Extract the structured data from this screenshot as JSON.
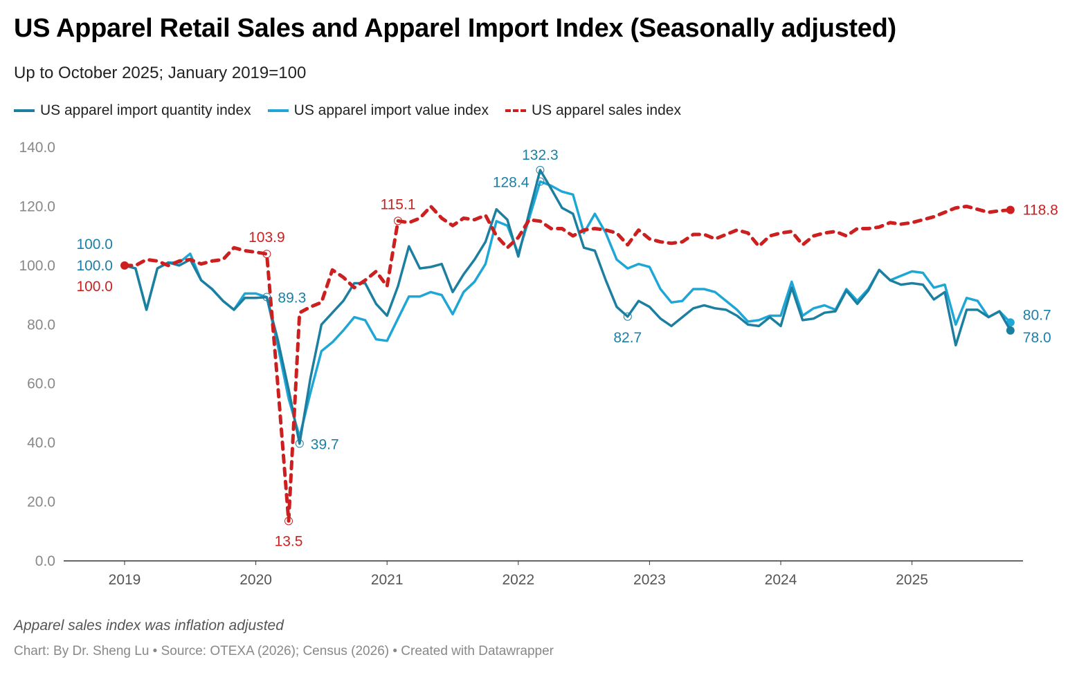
{
  "title": "US Apparel Retail Sales and Apparel Import Index (Seasonally adjusted)",
  "subtitle": "Up to October 2025; January 2019=100",
  "note": "Apparel sales index was inflation adjusted",
  "source": "Chart: By Dr. Sheng Lu • Source: OTEXA (2026); Census (2026) • Created with Datawrapper",
  "chart_data": {
    "type": "line",
    "title": "US Apparel Retail Sales and Apparel Import Index (Seasonally adjusted)",
    "xlabel": "",
    "ylabel": "",
    "ylim": [
      0,
      140
    ],
    "yticks": [
      "0.0",
      "20.0",
      "40.0",
      "60.0",
      "80.0",
      "100.0",
      "120.0",
      "140.0"
    ],
    "ytick_values": [
      0,
      20,
      40,
      60,
      80,
      100,
      120,
      140
    ],
    "xticks": [
      "2019",
      "2020",
      "2021",
      "2022",
      "2023",
      "2024",
      "2025"
    ],
    "start": "2019-01",
    "end": "2025-10",
    "legend_position": "top-left",
    "grid": false,
    "colors": {
      "quantity": "#1d7fa0",
      "value": "#1ea6d6",
      "sales": "#cc1f1f"
    },
    "series": [
      {
        "name": "US apparel import quantity index",
        "key": "quantity",
        "style": "solid",
        "values": [
          100,
          99,
          85,
          99,
          101,
          100,
          102,
          95,
          92,
          88,
          85,
          89,
          89,
          89.3,
          75,
          58,
          39.7,
          62,
          80,
          84,
          88,
          94,
          94,
          87,
          83,
          93,
          106.5,
          99,
          99.5,
          100.5,
          91,
          97,
          102,
          108,
          119,
          115.5,
          103,
          118,
          132.3,
          126,
          119.5,
          117.5,
          106,
          105,
          95,
          86,
          82.7,
          88,
          86,
          82,
          79.5,
          82.5,
          85.5,
          86.5,
          85.5,
          85,
          83,
          80,
          79.5,
          82.5,
          79.5,
          92.5,
          81.5,
          82,
          84,
          84.5,
          91.5,
          87,
          91.5,
          98.5,
          95,
          93.5,
          94,
          93.5,
          88.5,
          91,
          73,
          85,
          85,
          82.5,
          84.5,
          78.0
        ]
      },
      {
        "name": "US apparel import value index",
        "key": "value",
        "style": "solid",
        "values": [
          100,
          99,
          85,
          99,
          101,
          101,
          104,
          95,
          92,
          88,
          85,
          90.5,
          90.5,
          89.3,
          73,
          55,
          42,
          57,
          71,
          74,
          78,
          82.5,
          81.5,
          75,
          74.5,
          82,
          89.5,
          89.5,
          91,
          90,
          83.5,
          91,
          94.5,
          100.5,
          115,
          113.5,
          104,
          116,
          128.4,
          127,
          125,
          124,
          111,
          117.5,
          111,
          102,
          99,
          100.5,
          99.5,
          92,
          87.5,
          88,
          92,
          92,
          91,
          88,
          85,
          81,
          81.5,
          83,
          83,
          94.5,
          83,
          85.5,
          86.5,
          85,
          92,
          88,
          92,
          98.5,
          95,
          96.5,
          98,
          97.5,
          92.5,
          93.5,
          80,
          89,
          88,
          82.5,
          84.5,
          80.7
        ]
      },
      {
        "name": "US apparel sales index",
        "key": "sales",
        "style": "dashed",
        "values": [
          100,
          100,
          102,
          101.5,
          100,
          101.5,
          102,
          100.5,
          101.5,
          102,
          106,
          105,
          104.5,
          103.9,
          60,
          13.5,
          84,
          86,
          87.5,
          98.5,
          96,
          92.5,
          95,
          98,
          93,
          115.1,
          114.5,
          116,
          120,
          116,
          113.5,
          116,
          115.5,
          117,
          110,
          106,
          109.5,
          115.5,
          115,
          112.5,
          112.5,
          110,
          112,
          112.5,
          112,
          111,
          107,
          112,
          109,
          108,
          107.5,
          108,
          110.5,
          110.5,
          109,
          110.5,
          112,
          111,
          106.5,
          110,
          111,
          111.5,
          107,
          110,
          111,
          111.5,
          110,
          112.5,
          112.5,
          113,
          114.5,
          114,
          114.5,
          115.5,
          116.5,
          118,
          119.5,
          120,
          119,
          118,
          118.5,
          118.8
        ]
      }
    ],
    "annotations": [
      {
        "series": "quantity",
        "month_index": 0,
        "text": "100.0"
      },
      {
        "series": "value",
        "month_index": 0,
        "text": "100.0"
      },
      {
        "series": "sales",
        "month_index": 0,
        "text": "100.0"
      },
      {
        "series": "sales",
        "month_index": 13,
        "text": "103.9"
      },
      {
        "series": "value",
        "month_index": 13,
        "text": "89.3"
      },
      {
        "series": "sales",
        "month_index": 15,
        "text": "13.5"
      },
      {
        "series": "quantity",
        "month_index": 16,
        "text": "39.7"
      },
      {
        "series": "sales",
        "month_index": 25,
        "text": "115.1"
      },
      {
        "series": "quantity",
        "month_index": 38,
        "text": "132.3"
      },
      {
        "series": "value",
        "month_index": 38,
        "text": "128.4"
      },
      {
        "series": "quantity",
        "month_index": 46,
        "text": "82.7"
      },
      {
        "series": "sales",
        "month_index": 81,
        "text": "118.8"
      },
      {
        "series": "value",
        "month_index": 81,
        "text": "80.7"
      },
      {
        "series": "quantity",
        "month_index": 81,
        "text": "78.0"
      }
    ]
  }
}
